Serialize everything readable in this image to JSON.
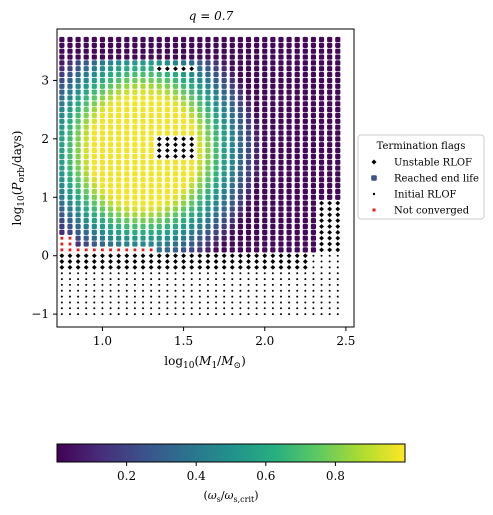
{
  "chart_data": {
    "type": "scatter",
    "title": "q = 0.7",
    "xlabel": "log10(M1/M⊙)",
    "ylabel": "log10(Porb/days)",
    "xlim": [
      0.72,
      2.55
    ],
    "ylim": [
      -1.22,
      3.88
    ],
    "xticks": [
      1.0,
      1.5,
      2.0,
      2.5
    ],
    "xtick_labels": [
      "1.0",
      "1.5",
      "2.0",
      "2.5"
    ],
    "yticks": [
      -1,
      0,
      1,
      2,
      3
    ],
    "ytick_labels": [
      "−1",
      "0",
      "1",
      "2",
      "3"
    ],
    "grid": false,
    "grid_x": {
      "start": 0.75,
      "step": 0.05,
      "count": 35
    },
    "grid_y": {
      "start": -1.0,
      "step": 0.1,
      "count": 48
    },
    "legend": {
      "title": "Termination flags",
      "placement": "outside-right",
      "entries": [
        {
          "label": "Unstable RLOF",
          "marker": "diamond",
          "color": "#000000"
        },
        {
          "label": "Reached end life",
          "marker": "square",
          "color": "#3b528b"
        },
        {
          "label": "Initial RLOF",
          "marker": "dot",
          "color": "#000000"
        },
        {
          "label": "Not converged",
          "marker": "x",
          "color": "#e41a1c"
        }
      ]
    },
    "colorbar": {
      "label": "(ωs/ωs,crit)",
      "colormap": "viridis",
      "range": [
        0.0,
        1.0
      ],
      "ticks": [
        0.2,
        0.4,
        0.6,
        0.8
      ],
      "tick_labels": [
        "0.2",
        "0.4",
        "0.6",
        "0.8"
      ]
    },
    "regions": {
      "initial_rlof_below_logP": -0.25,
      "unstable_rlof_band_logP": [
        -0.25,
        0.05
      ],
      "not_converged_edge_logM1_max": 0.85,
      "yellow_core": {
        "logM1_max": 1.6,
        "logP_range": [
          0.2,
          3.3
        ]
      },
      "purple_outer": {
        "logP_min": 3.4
      }
    }
  }
}
